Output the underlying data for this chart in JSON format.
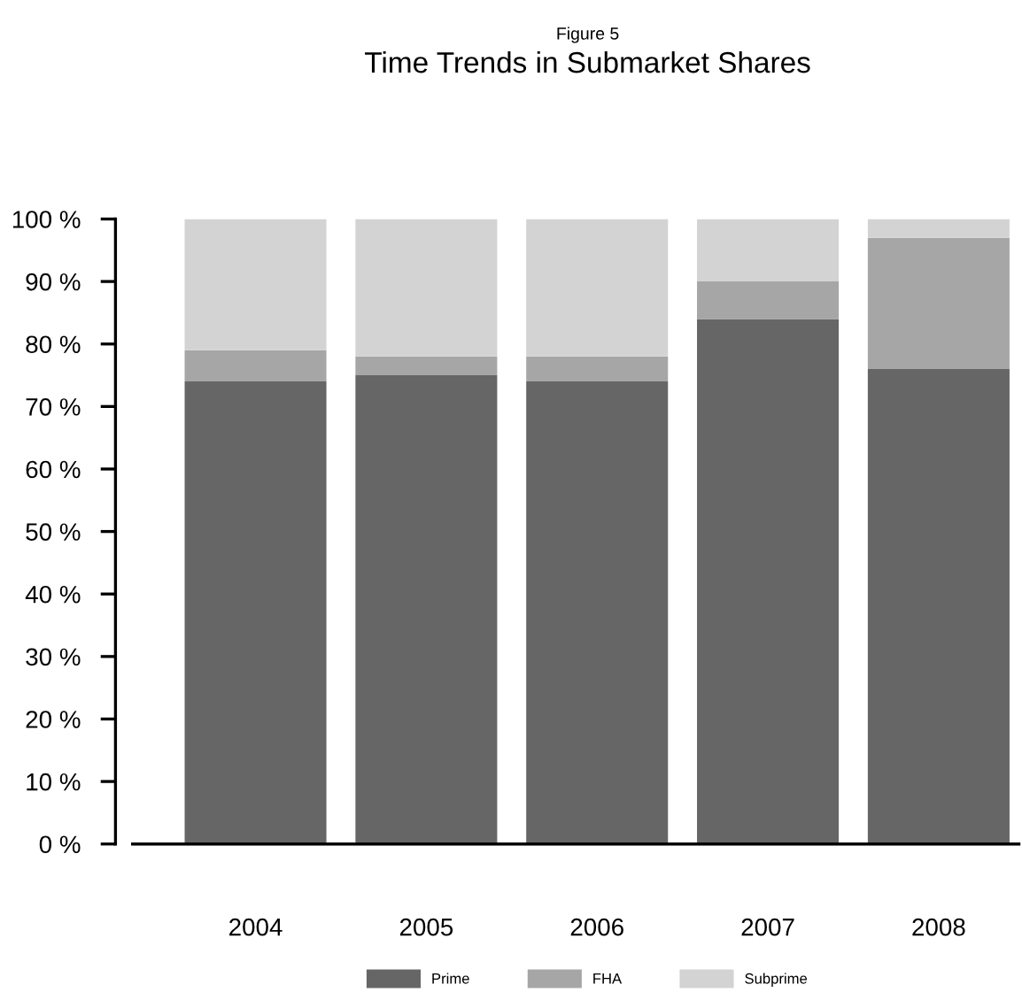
{
  "chart_data": {
    "type": "bar",
    "stacked": true,
    "title": "Figure 5",
    "subtitle": "Time Trends in Submarket Shares",
    "categories": [
      "2004",
      "2005",
      "2006",
      "2007",
      "2008"
    ],
    "series": [
      {
        "name": "Prime",
        "color": "#666666",
        "values": [
          74,
          75,
          74,
          84,
          76
        ]
      },
      {
        "name": "FHA",
        "color": "#a6a6a6",
        "values": [
          5,
          3,
          4,
          6,
          21
        ]
      },
      {
        "name": "Subprime",
        "color": "#d3d3d3",
        "values": [
          21,
          22,
          22,
          10,
          3
        ]
      }
    ],
    "ylim": [
      0,
      100
    ],
    "yticks": [
      {
        "value": 0,
        "label": "0 %"
      },
      {
        "value": 10,
        "label": "10 %"
      },
      {
        "value": 20,
        "label": "20 %"
      },
      {
        "value": 30,
        "label": "30 %"
      },
      {
        "value": 40,
        "label": "40 %"
      },
      {
        "value": 50,
        "label": "50 %"
      },
      {
        "value": 60,
        "label": "60 %"
      },
      {
        "value": 70,
        "label": "70 %"
      },
      {
        "value": 80,
        "label": "80 %"
      },
      {
        "value": 90,
        "label": "90 %"
      },
      {
        "value": 100,
        "label": "100 %"
      }
    ],
    "grid": false,
    "legend": "bottom"
  }
}
